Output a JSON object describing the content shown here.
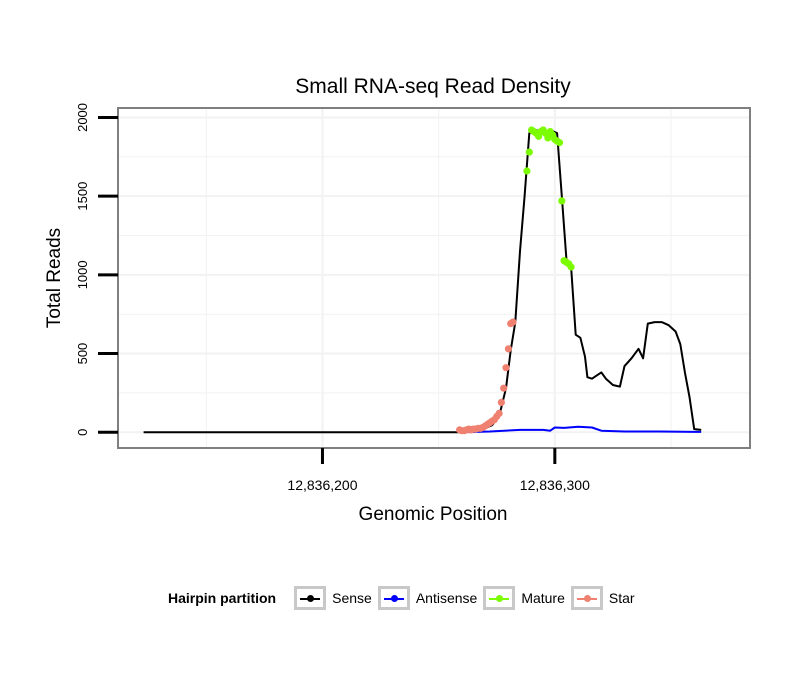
{
  "chart_data": {
    "type": "line",
    "title": "Small RNA-seq Read Density",
    "xlabel": "Genomic Position",
    "ylabel": "Total Reads",
    "x_ticks": [
      12836200,
      12836300
    ],
    "x_tick_labels": [
      "12,836,200",
      "12,836,300"
    ],
    "y_ticks": [
      0,
      500,
      1000,
      1500,
      2000
    ],
    "y_tick_labels": [
      "0",
      "500",
      "1000",
      "1500",
      "2000"
    ],
    "xlim": [
      12836112,
      12836384
    ],
    "ylim": [
      -100,
      2060
    ],
    "grid": true,
    "legend": {
      "title": "Hairpin partition",
      "position": "bottom",
      "entries": [
        {
          "label": "Sense",
          "color": "#000000"
        },
        {
          "label": "Antisense",
          "color": "#0000ff"
        },
        {
          "label": "Mature",
          "color": "#7cfc00"
        },
        {
          "label": "Star",
          "color": "#f08070"
        }
      ]
    },
    "series": [
      {
        "name": "Sense",
        "color": "#000000",
        "style": "line",
        "points": [
          [
            12836123,
            0
          ],
          [
            12836260,
            0
          ],
          [
            12836263,
            5
          ],
          [
            12836266,
            10
          ],
          [
            12836270,
            25
          ],
          [
            12836273,
            45
          ],
          [
            12836276,
            100
          ],
          [
            12836279,
            280
          ],
          [
            12836281,
            520
          ],
          [
            12836283,
            700
          ],
          [
            12836285,
            1150
          ],
          [
            12836287,
            1500
          ],
          [
            12836289,
            1900
          ],
          [
            12836292,
            1920
          ],
          [
            12836295,
            1900
          ],
          [
            12836298,
            1920
          ],
          [
            12836301,
            1900
          ],
          [
            12836303,
            1500
          ],
          [
            12836305,
            1100
          ],
          [
            12836307,
            1050
          ],
          [
            12836309,
            620
          ],
          [
            12836311,
            600
          ],
          [
            12836313,
            480
          ],
          [
            12836314,
            350
          ],
          [
            12836316,
            340
          ],
          [
            12836318,
            360
          ],
          [
            12836320,
            380
          ],
          [
            12836322,
            340
          ],
          [
            12836325,
            300
          ],
          [
            12836328,
            290
          ],
          [
            12836330,
            420
          ],
          [
            12836333,
            470
          ],
          [
            12836336,
            530
          ],
          [
            12836338,
            470
          ],
          [
            12836340,
            690
          ],
          [
            12836343,
            700
          ],
          [
            12836346,
            700
          ],
          [
            12836349,
            680
          ],
          [
            12836352,
            640
          ],
          [
            12836354,
            560
          ],
          [
            12836356,
            380
          ],
          [
            12836358,
            220
          ],
          [
            12836360,
            20
          ],
          [
            12836363,
            15
          ]
        ]
      },
      {
        "name": "Antisense",
        "color": "#0000ff",
        "style": "line",
        "points": [
          [
            12836260,
            0
          ],
          [
            12836272,
            5
          ],
          [
            12836285,
            15
          ],
          [
            12836295,
            15
          ],
          [
            12836298,
            10
          ],
          [
            12836300,
            30
          ],
          [
            12836304,
            28
          ],
          [
            12836310,
            35
          ],
          [
            12836316,
            30
          ],
          [
            12836320,
            10
          ],
          [
            12836330,
            5
          ],
          [
            12836345,
            5
          ],
          [
            12836360,
            2
          ],
          [
            12836363,
            2
          ]
        ]
      },
      {
        "name": "Mature",
        "color": "#7cfc00",
        "style": "points",
        "points": [
          [
            12836288,
            1660
          ],
          [
            12836289,
            1780
          ],
          [
            12836290,
            1920
          ],
          [
            12836291,
            1910
          ],
          [
            12836292,
            1900
          ],
          [
            12836293,
            1880
          ],
          [
            12836294,
            1910
          ],
          [
            12836295,
            1920
          ],
          [
            12836296,
            1900
          ],
          [
            12836297,
            1870
          ],
          [
            12836298,
            1910
          ],
          [
            12836299,
            1890
          ],
          [
            12836300,
            1860
          ],
          [
            12836301,
            1850
          ],
          [
            12836302,
            1840
          ],
          [
            12836303,
            1470
          ],
          [
            12836304,
            1090
          ],
          [
            12836305,
            1080
          ],
          [
            12836306,
            1070
          ],
          [
            12836307,
            1050
          ]
        ]
      },
      {
        "name": "Star",
        "color": "#f08070",
        "style": "points",
        "points": [
          [
            12836259,
            15
          ],
          [
            12836260,
            10
          ],
          [
            12836261,
            10
          ],
          [
            12836262,
            15
          ],
          [
            12836263,
            20
          ],
          [
            12836264,
            15
          ],
          [
            12836265,
            20
          ],
          [
            12836266,
            20
          ],
          [
            12836267,
            25
          ],
          [
            12836268,
            25
          ],
          [
            12836269,
            30
          ],
          [
            12836270,
            40
          ],
          [
            12836271,
            50
          ],
          [
            12836272,
            60
          ],
          [
            12836273,
            70
          ],
          [
            12836274,
            80
          ],
          [
            12836275,
            100
          ],
          [
            12836276,
            120
          ],
          [
            12836277,
            190
          ],
          [
            12836278,
            280
          ],
          [
            12836279,
            410
          ],
          [
            12836280,
            530
          ],
          [
            12836281,
            690
          ],
          [
            12836282,
            700
          ]
        ]
      }
    ]
  }
}
